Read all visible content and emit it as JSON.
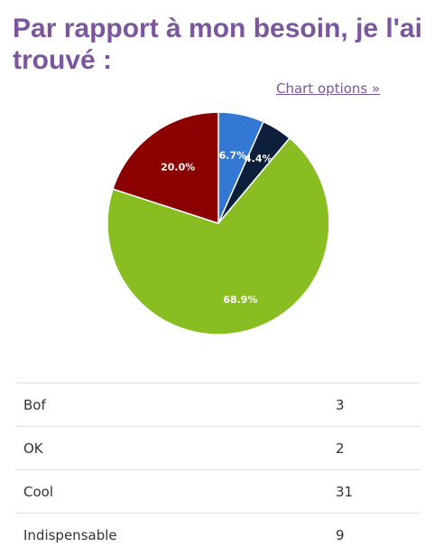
{
  "question": {
    "title": "Par rapport à mon besoin, je l'ai trouvé :"
  },
  "chart_options_link": "Chart options »",
  "colors": {
    "title": "#7b569e",
    "Bof": "#3278d4",
    "OK": "#0d1f3a",
    "Cool": "#89be23",
    "Indispensable": "#8b0000"
  },
  "chart_data": {
    "type": "pie",
    "categories": [
      "Bof",
      "OK",
      "Cool",
      "Indispensable"
    ],
    "values": [
      3,
      2,
      31,
      9
    ],
    "labels": [
      "6.7%",
      "4.4%",
      "68.9%",
      "20.0%"
    ]
  },
  "table": {
    "rows": [
      {
        "label": "Bof",
        "count": "3"
      },
      {
        "label": "OK",
        "count": "2"
      },
      {
        "label": "Cool",
        "count": "31"
      },
      {
        "label": "Indispensable",
        "count": "9"
      }
    ]
  }
}
